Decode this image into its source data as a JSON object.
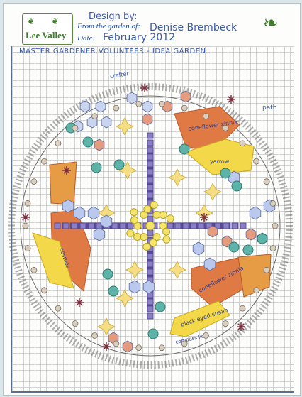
{
  "logo": {
    "brand": "Lee Valley"
  },
  "header": {
    "design_by_label": "Design by:",
    "designer": "Denise Brembeck",
    "from_label": "From the garden of:",
    "date_label": "Date:",
    "date": "February 2012"
  },
  "title": "MASTER GARDENER VOLUNTEER - IDEA GARDEN",
  "annotations": {
    "path": "path",
    "crafter": "crafter",
    "bed_top_right": "coneflower zinnia",
    "bed_bottom_right": "coneflower zinnia",
    "bed_left": "cosmos",
    "yellow_top": "yarrow",
    "yellow_bottom": "black eyed susan",
    "edge_bottom": "compass line"
  },
  "colors": {
    "plan_line": "#3a59a8",
    "orange_bed": "#e07a45",
    "yellow_bed": "#f3d84a",
    "purple_square": "#8a7fc6",
    "blue_hex": "#b9c8ec",
    "teal_circle": "#5db3a8",
    "salmon_hex": "#e59c7e",
    "gold_star": "#f4dd82"
  },
  "icons": [
    "leaf-logo-icon",
    "corner-leaf-icon"
  ]
}
